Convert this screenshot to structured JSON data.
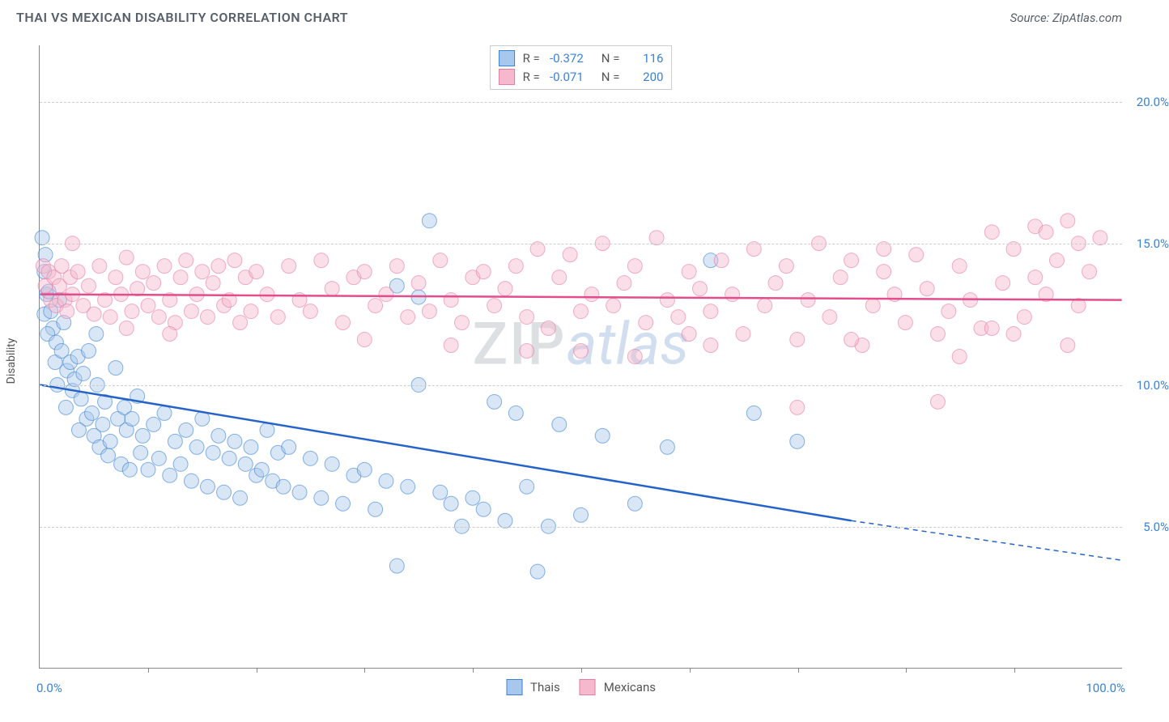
{
  "title": "THAI VS MEXICAN DISABILITY CORRELATION CHART",
  "source": "Source: ZipAtlas.com",
  "ylabel": "Disability",
  "watermark_zip": "ZIP",
  "watermark_atlas": "atlas",
  "chart": {
    "type": "scatter",
    "xlim": [
      0,
      100
    ],
    "ylim": [
      0,
      22
    ],
    "xaxis_left": "0.0%",
    "xaxis_right": "100.0%",
    "yticks": [
      {
        "v": 5,
        "label": "5.0%"
      },
      {
        "v": 10,
        "label": "10.0%"
      },
      {
        "v": 15,
        "label": "15.0%"
      },
      {
        "v": 20,
        "label": "20.0%"
      }
    ],
    "xtick_positions": [
      10,
      20,
      30,
      40,
      50,
      60,
      70,
      80,
      90
    ],
    "grid_color": "#cccccc",
    "background_color": "#ffffff",
    "marker_radius": 9,
    "marker_opacity": 0.45,
    "line_width": 2.5
  },
  "series": [
    {
      "name": "Thais",
      "label": "Thais",
      "fill_color": "#a8c7ec",
      "stroke_color": "#3b82d6",
      "line_color": "#2563c9",
      "r_label": "R =",
      "r_value": "-0.372",
      "n_label": "N =",
      "n_value": "116",
      "trend": {
        "x1": 0,
        "y1": 10.0,
        "x2": 75,
        "y2": 5.2,
        "dash_x2": 100,
        "dash_y2": 3.8
      },
      "points": [
        [
          0.2,
          15.2
        ],
        [
          0.5,
          14.6
        ],
        [
          0.4,
          14.0
        ],
        [
          0.6,
          13.2
        ],
        [
          0.4,
          12.5
        ],
        [
          0.8,
          13.3
        ],
        [
          1.0,
          12.6
        ],
        [
          1.2,
          12.0
        ],
        [
          0.7,
          11.8
        ],
        [
          1.5,
          11.5
        ],
        [
          1.8,
          13.0
        ],
        [
          1.4,
          10.8
        ],
        [
          2.0,
          11.2
        ],
        [
          2.5,
          10.5
        ],
        [
          2.2,
          12.2
        ],
        [
          1.6,
          10.0
        ],
        [
          2.8,
          10.8
        ],
        [
          3.0,
          9.8
        ],
        [
          3.2,
          10.2
        ],
        [
          3.5,
          11.0
        ],
        [
          2.4,
          9.2
        ],
        [
          3.8,
          9.5
        ],
        [
          4.0,
          10.4
        ],
        [
          4.3,
          8.8
        ],
        [
          4.5,
          11.2
        ],
        [
          3.6,
          8.4
        ],
        [
          4.8,
          9.0
        ],
        [
          5.0,
          8.2
        ],
        [
          5.3,
          10.0
        ],
        [
          5.5,
          7.8
        ],
        [
          5.8,
          8.6
        ],
        [
          6.0,
          9.4
        ],
        [
          6.3,
          7.5
        ],
        [
          6.5,
          8.0
        ],
        [
          5.2,
          11.8
        ],
        [
          7.0,
          10.6
        ],
        [
          7.2,
          8.8
        ],
        [
          7.5,
          7.2
        ],
        [
          7.8,
          9.2
        ],
        [
          8.0,
          8.4
        ],
        [
          8.3,
          7.0
        ],
        [
          8.5,
          8.8
        ],
        [
          9.0,
          9.6
        ],
        [
          9.3,
          7.6
        ],
        [
          9.5,
          8.2
        ],
        [
          10.0,
          7.0
        ],
        [
          10.5,
          8.6
        ],
        [
          11.0,
          7.4
        ],
        [
          11.5,
          9.0
        ],
        [
          12.0,
          6.8
        ],
        [
          12.5,
          8.0
        ],
        [
          13.0,
          7.2
        ],
        [
          13.5,
          8.4
        ],
        [
          14.0,
          6.6
        ],
        [
          14.5,
          7.8
        ],
        [
          15.0,
          8.8
        ],
        [
          15.5,
          6.4
        ],
        [
          16.0,
          7.6
        ],
        [
          16.5,
          8.2
        ],
        [
          17.0,
          6.2
        ],
        [
          17.5,
          7.4
        ],
        [
          18.0,
          8.0
        ],
        [
          18.5,
          6.0
        ],
        [
          19.0,
          7.2
        ],
        [
          19.5,
          7.8
        ],
        [
          20.0,
          6.8
        ],
        [
          20.5,
          7.0
        ],
        [
          21.0,
          8.4
        ],
        [
          21.5,
          6.6
        ],
        [
          22.0,
          7.6
        ],
        [
          22.5,
          6.4
        ],
        [
          23.0,
          7.8
        ],
        [
          24.0,
          6.2
        ],
        [
          25.0,
          7.4
        ],
        [
          26.0,
          6.0
        ],
        [
          27.0,
          7.2
        ],
        [
          28.0,
          5.8
        ],
        [
          29.0,
          6.8
        ],
        [
          30.0,
          7.0
        ],
        [
          31.0,
          5.6
        ],
        [
          32.0,
          6.6
        ],
        [
          33.0,
          3.6
        ],
        [
          34.0,
          6.4
        ],
        [
          35.0,
          10.0
        ],
        [
          36.0,
          15.8
        ],
        [
          37.0,
          6.2
        ],
        [
          38.0,
          5.8
        ],
        [
          39.0,
          5.0
        ],
        [
          40.0,
          6.0
        ],
        [
          33.0,
          13.5
        ],
        [
          41.0,
          5.6
        ],
        [
          35.0,
          13.1
        ],
        [
          42.0,
          9.4
        ],
        [
          43.0,
          5.2
        ],
        [
          44.0,
          9.0
        ],
        [
          45.0,
          6.4
        ],
        [
          46.0,
          3.4
        ],
        [
          47.0,
          5.0
        ],
        [
          48.0,
          8.6
        ],
        [
          50.0,
          5.4
        ],
        [
          52.0,
          8.2
        ],
        [
          55.0,
          5.8
        ],
        [
          58.0,
          7.8
        ],
        [
          62.0,
          14.4
        ],
        [
          66.0,
          9.0
        ],
        [
          70.0,
          8.0
        ]
      ]
    },
    {
      "name": "Mexicans",
      "label": "Mexicans",
      "fill_color": "#f5b8cc",
      "stroke_color": "#e87ba5",
      "line_color": "#e34d8c",
      "r_label": "R =",
      "r_value": "-0.071",
      "n_label": "N =",
      "n_value": "200",
      "trend": {
        "x1": 0,
        "y1": 13.2,
        "x2": 100,
        "y2": 13.0
      },
      "points": [
        [
          0.3,
          14.2
        ],
        [
          0.5,
          13.5
        ],
        [
          0.8,
          14.0
        ],
        [
          1.0,
          13.0
        ],
        [
          1.3,
          13.8
        ],
        [
          1.5,
          12.8
        ],
        [
          1.8,
          13.5
        ],
        [
          2.0,
          14.2
        ],
        [
          2.3,
          13.0
        ],
        [
          2.5,
          12.6
        ],
        [
          2.8,
          13.8
        ],
        [
          3.0,
          13.2
        ],
        [
          3.5,
          14.0
        ],
        [
          4.0,
          12.8
        ],
        [
          4.5,
          13.5
        ],
        [
          5.0,
          12.5
        ],
        [
          5.5,
          14.2
        ],
        [
          6.0,
          13.0
        ],
        [
          6.5,
          12.4
        ],
        [
          7.0,
          13.8
        ],
        [
          7.5,
          13.2
        ],
        [
          8.0,
          14.5
        ],
        [
          8.5,
          12.6
        ],
        [
          9.0,
          13.4
        ],
        [
          9.5,
          14.0
        ],
        [
          10.0,
          12.8
        ],
        [
          10.5,
          13.6
        ],
        [
          11.0,
          12.4
        ],
        [
          11.5,
          14.2
        ],
        [
          12.0,
          13.0
        ],
        [
          12.5,
          12.2
        ],
        [
          13.0,
          13.8
        ],
        [
          13.5,
          14.4
        ],
        [
          14.0,
          12.6
        ],
        [
          14.5,
          13.2
        ],
        [
          15.0,
          14.0
        ],
        [
          15.5,
          12.4
        ],
        [
          16.0,
          13.6
        ],
        [
          16.5,
          14.2
        ],
        [
          17.0,
          12.8
        ],
        [
          17.5,
          13.0
        ],
        [
          18.0,
          14.4
        ],
        [
          18.5,
          12.2
        ],
        [
          19.0,
          13.8
        ],
        [
          19.5,
          12.6
        ],
        [
          20.0,
          14.0
        ],
        [
          21.0,
          13.2
        ],
        [
          22.0,
          12.4
        ],
        [
          23.0,
          14.2
        ],
        [
          24.0,
          13.0
        ],
        [
          25.0,
          12.6
        ],
        [
          26.0,
          14.4
        ],
        [
          27.0,
          13.4
        ],
        [
          28.0,
          12.2
        ],
        [
          29.0,
          13.8
        ],
        [
          30.0,
          14.0
        ],
        [
          31.0,
          12.8
        ],
        [
          32.0,
          13.2
        ],
        [
          33.0,
          14.2
        ],
        [
          34.0,
          12.4
        ],
        [
          35.0,
          13.6
        ],
        [
          36.0,
          12.6
        ],
        [
          37.0,
          14.4
        ],
        [
          38.0,
          13.0
        ],
        [
          39.0,
          12.2
        ],
        [
          40.0,
          13.8
        ],
        [
          41.0,
          14.0
        ],
        [
          42.0,
          12.8
        ],
        [
          43.0,
          13.4
        ],
        [
          44.0,
          14.2
        ],
        [
          45.0,
          12.4
        ],
        [
          46.0,
          14.8
        ],
        [
          47.0,
          12.0
        ],
        [
          48.0,
          13.8
        ],
        [
          49.0,
          14.6
        ],
        [
          50.0,
          12.6
        ],
        [
          51.0,
          13.2
        ],
        [
          52.0,
          15.0
        ],
        [
          53.0,
          12.8
        ],
        [
          54.0,
          13.6
        ],
        [
          55.0,
          14.2
        ],
        [
          56.0,
          12.2
        ],
        [
          57.0,
          15.2
        ],
        [
          58.0,
          13.0
        ],
        [
          59.0,
          12.4
        ],
        [
          60.0,
          14.0
        ],
        [
          61.0,
          13.4
        ],
        [
          62.0,
          12.6
        ],
        [
          63.0,
          14.4
        ],
        [
          64.0,
          13.2
        ],
        [
          65.0,
          11.8
        ],
        [
          66.0,
          14.8
        ],
        [
          67.0,
          12.8
        ],
        [
          68.0,
          13.6
        ],
        [
          69.0,
          14.2
        ],
        [
          70.0,
          11.6
        ],
        [
          71.0,
          13.0
        ],
        [
          72.0,
          15.0
        ],
        [
          73.0,
          12.4
        ],
        [
          74.0,
          13.8
        ],
        [
          75.0,
          14.4
        ],
        [
          76.0,
          11.4
        ],
        [
          77.0,
          12.8
        ],
        [
          78.0,
          14.0
        ],
        [
          79.0,
          13.2
        ],
        [
          80.0,
          12.2
        ],
        [
          81.0,
          14.6
        ],
        [
          82.0,
          13.4
        ],
        [
          83.0,
          11.8
        ],
        [
          84.0,
          12.6
        ],
        [
          85.0,
          14.2
        ],
        [
          86.0,
          13.0
        ],
        [
          87.0,
          12.0
        ],
        [
          88.0,
          15.4
        ],
        [
          89.0,
          13.6
        ],
        [
          90.0,
          14.8
        ],
        [
          91.0,
          12.4
        ],
        [
          92.0,
          15.6
        ],
        [
          93.0,
          13.2
        ],
        [
          94.0,
          14.4
        ],
        [
          95.0,
          15.8
        ],
        [
          96.0,
          12.8
        ],
        [
          97.0,
          14.0
        ],
        [
          98.0,
          15.2
        ],
        [
          70.0,
          9.2
        ],
        [
          83.0,
          9.4
        ],
        [
          45.0,
          11.2
        ],
        [
          55.0,
          11.0
        ],
        [
          62.0,
          11.4
        ],
        [
          75.0,
          11.6
        ],
        [
          85.0,
          11.0
        ],
        [
          90.0,
          11.8
        ],
        [
          95.0,
          11.4
        ],
        [
          3.0,
          15.0
        ],
        [
          8.0,
          12.0
        ],
        [
          12.0,
          11.8
        ],
        [
          30.0,
          11.6
        ],
        [
          38.0,
          11.4
        ],
        [
          50.0,
          11.2
        ],
        [
          60.0,
          11.8
        ],
        [
          78.0,
          14.8
        ],
        [
          92.0,
          13.8
        ],
        [
          88.0,
          12.0
        ],
        [
          96.0,
          15.0
        ],
        [
          93.0,
          15.4
        ]
      ]
    }
  ]
}
